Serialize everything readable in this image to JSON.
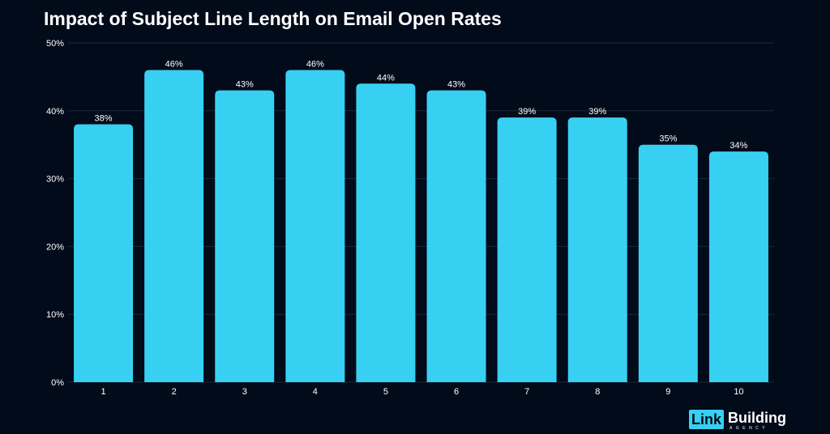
{
  "chart_data": {
    "type": "bar",
    "title": "Impact of Subject Line Length on Email Open Rates",
    "categories": [
      "1",
      "2",
      "3",
      "4",
      "5",
      "6",
      "7",
      "8",
      "9",
      "10"
    ],
    "values": [
      38,
      46,
      43,
      46,
      44,
      43,
      39,
      39,
      35,
      34
    ],
    "value_labels": [
      "38%",
      "46%",
      "43%",
      "46%",
      "44%",
      "43%",
      "39%",
      "39%",
      "35%",
      "34%"
    ],
    "xlabel": "",
    "ylabel": "",
    "ylim": [
      0,
      50
    ],
    "yticks": [
      0,
      10,
      20,
      30,
      40,
      50
    ],
    "ytick_labels": [
      "0%",
      "10%",
      "20%",
      "30%",
      "40%",
      "50%"
    ],
    "grid": true,
    "legend": "none",
    "colors": {
      "background": "#020b1a",
      "bar": "#38d0f2",
      "grid": "#1c2838",
      "text": "#ffffff"
    }
  },
  "brand": {
    "logo_box_text": "Link",
    "logo_word": "Building",
    "logo_sub": "AGENCY"
  }
}
